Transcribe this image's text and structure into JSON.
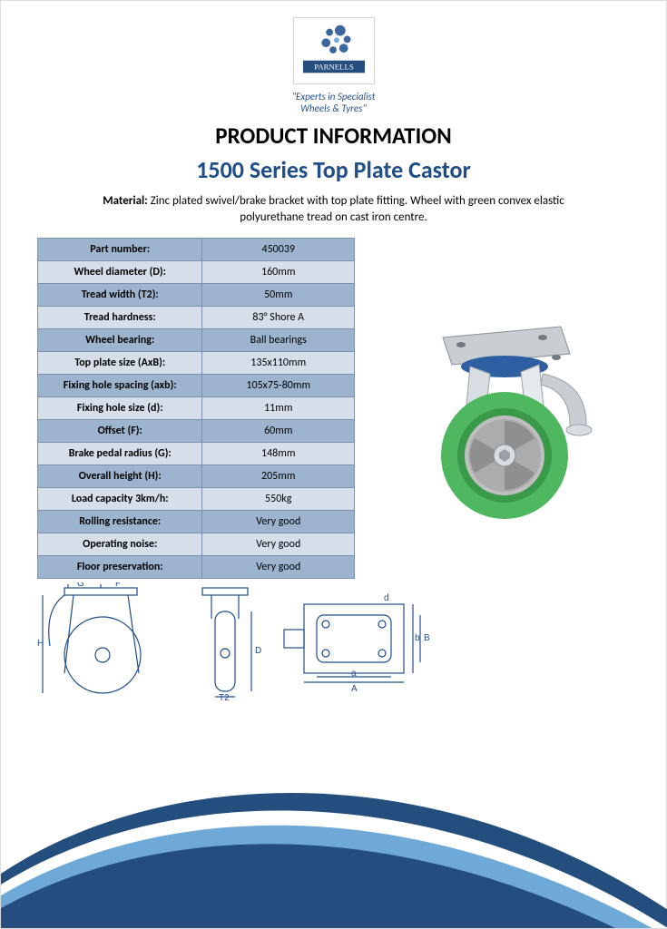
{
  "brand": {
    "name": "PARNELLS",
    "tagline_line1": "\"Experts in Specialist",
    "tagline_line2": "Wheels & Tyres\"",
    "logo_bg": "#ffffff",
    "logo_accent": "#3b66a0"
  },
  "headings": {
    "main": "PRODUCT INFORMATION",
    "sub": "1500 Series Top Plate Castor",
    "sub_color": "#1f4e89",
    "sub_fontsize": 26
  },
  "material": {
    "label": "Material:",
    "text": "Zinc plated swivel/brake bracket with top plate fitting. Wheel with green convex elastic polyurethane tread on cast iron centre."
  },
  "spec_table": {
    "header_bg": "#9db4cf",
    "alt_bg": "#d6deea",
    "border_color": "#7a91ad",
    "rows": [
      {
        "label": "Part number:",
        "value": "450039"
      },
      {
        "label": "Wheel diameter (D):",
        "value": "160mm"
      },
      {
        "label": "Tread width (T2):",
        "value": "50mm"
      },
      {
        "label": "Tread hardness:",
        "value": "83° Shore A"
      },
      {
        "label": "Wheel bearing:",
        "value": "Ball bearings"
      },
      {
        "label": "Top plate size (AxB):",
        "value": "135x110mm"
      },
      {
        "label": "Fixing hole spacing (axb):",
        "value": "105x75-80mm"
      },
      {
        "label": "Fixing hole size (d):",
        "value": "11mm"
      },
      {
        "label": "Offset (F):",
        "value": "60mm"
      },
      {
        "label": "Brake pedal radius (G):",
        "value": "148mm"
      },
      {
        "label": "Overall height (H):",
        "value": "205mm"
      },
      {
        "label": "Load capacity 3km/h:",
        "value": "550kg"
      },
      {
        "label": "Rolling resistance:",
        "value": "Very good"
      },
      {
        "label": "Operating noise:",
        "value": "Very good"
      },
      {
        "label": "Floor preservation:",
        "value": "Very good"
      }
    ]
  },
  "product_image": {
    "wheel_tread_color": "#4fb760",
    "wheel_hub_color": "#b0b0b0",
    "bracket_color": "#d8dde2",
    "bracket_accent": "#2e5fa3",
    "pedal_color": "#c9ced3"
  },
  "diagrams": {
    "stroke": "#1f4e89",
    "labels": [
      "G",
      "F",
      "H",
      "D",
      "T2",
      "d",
      "a",
      "A",
      "b",
      "B"
    ]
  },
  "swoosh": {
    "outer_color": "#244e7e",
    "inner_color": "#6fa9d8"
  }
}
